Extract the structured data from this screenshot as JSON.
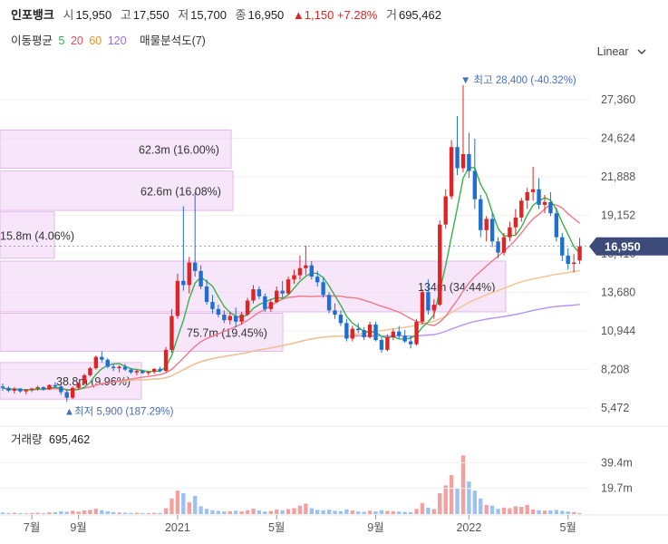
{
  "header": {
    "name": "인포뱅크",
    "open_label": "시",
    "open": "15,950",
    "high_label": "고",
    "high": "17,550",
    "low_label": "저",
    "low": "15,700",
    "close_label": "종",
    "close": "16,950",
    "change": "▲1,150 +7.28%",
    "volume_label": "거",
    "volume": "695,462"
  },
  "ma_legend": {
    "label": "이동평균",
    "p5": "5",
    "p20": "20",
    "p60": "60",
    "p120": "120",
    "extra": "매물분석도(7)"
  },
  "scale_selector": {
    "label": "Linear"
  },
  "colors": {
    "up": "#e02424",
    "down": "#1f6fd1",
    "ma5": "#35b24a",
    "ma20": "#f07888",
    "ma60": "#f3c38c",
    "ma120": "#b892f0",
    "profile": "#f2d6f6"
  },
  "chart_data": {
    "type": "candlestick",
    "x_ticks": [
      "7월",
      "9월",
      "2021",
      "5월",
      "9월",
      "2022",
      "5월"
    ],
    "y_ticks": [
      "27,360",
      "24,624",
      "21,888",
      "19,152",
      "16,416",
      "13,680",
      "10,944",
      "8,208",
      "5,472"
    ],
    "ylim": [
      5472,
      28400
    ],
    "current_price_label": "16,950",
    "high_annotation": "최고 28,400 (-40.32%)",
    "low_annotation": "최저 5,900 (187.29%)",
    "volume_profile": [
      {
        "label": "62.3m (16.00%)",
        "price_from": 22500,
        "price_to": 25200
      },
      {
        "label": "62.6m (16.08%)",
        "price_from": 19500,
        "price_to": 22300
      },
      {
        "label": "15.8m (4.06%)",
        "price_from": 16100,
        "price_to": 19400
      },
      {
        "label": "134m (34.44%)",
        "price_from": 12300,
        "price_to": 15900
      },
      {
        "label": "75.7m (19.45%)",
        "price_from": 9500,
        "price_to": 12200
      },
      {
        "label": "38.8m (9.96%)",
        "price_from": 6100,
        "price_to": 8700
      }
    ],
    "candles": [
      [
        7000,
        7200,
        6700,
        6900
      ],
      [
        6900,
        7000,
        6600,
        6700
      ],
      [
        6700,
        6950,
        6500,
        6850
      ],
      [
        6850,
        6900,
        6550,
        6650
      ],
      [
        6650,
        6800,
        6450,
        6750
      ],
      [
        6750,
        6900,
        6600,
        6850
      ],
      [
        6850,
        7050,
        6700,
        6950
      ],
      [
        6950,
        7000,
        6700,
        6800
      ],
      [
        6800,
        7150,
        6750,
        7100
      ],
      [
        7100,
        7300,
        6900,
        7000
      ],
      [
        7000,
        7100,
        6400,
        6600
      ],
      [
        6600,
        6800,
        5900,
        6200
      ],
      [
        6200,
        7000,
        6100,
        6900
      ],
      [
        6900,
        7300,
        6800,
        7200
      ],
      [
        7200,
        7900,
        7100,
        7800
      ],
      [
        7800,
        8400,
        7700,
        8300
      ],
      [
        8300,
        9200,
        8200,
        9100
      ],
      [
        9100,
        9500,
        8700,
        8900
      ],
      [
        8900,
        9000,
        8300,
        8400
      ],
      [
        8400,
        8600,
        8100,
        8300
      ],
      [
        8300,
        8500,
        8000,
        8400
      ],
      [
        8400,
        8600,
        8100,
        8200
      ],
      [
        8200,
        8300,
        7900,
        8000
      ],
      [
        8000,
        8200,
        7800,
        8100
      ],
      [
        8100,
        8200,
        7900,
        7950
      ],
      [
        7950,
        8100,
        7800,
        8050
      ],
      [
        8050,
        8300,
        7900,
        8250
      ],
      [
        8250,
        8400,
        8000,
        8100
      ],
      [
        8100,
        9800,
        8000,
        9600
      ],
      [
        9600,
        12500,
        9400,
        12000
      ],
      [
        12000,
        15000,
        11800,
        14500
      ],
      [
        14500,
        19800,
        13800,
        14200
      ],
      [
        14200,
        16200,
        13600,
        15800
      ],
      [
        15800,
        20800,
        14800,
        15200
      ],
      [
        15200,
        15600,
        13900,
        14100
      ],
      [
        14100,
        14600,
        12800,
        13000
      ],
      [
        13000,
        13500,
        12200,
        12500
      ],
      [
        12500,
        12800,
        11900,
        12100
      ],
      [
        12100,
        12400,
        11500,
        11700
      ],
      [
        11700,
        12300,
        11400,
        12000
      ],
      [
        12000,
        12600,
        11200,
        11600
      ],
      [
        11600,
        12300,
        11400,
        12100
      ],
      [
        12100,
        13300,
        12000,
        13100
      ],
      [
        13100,
        14200,
        12900,
        13900
      ],
      [
        13900,
        14100,
        13200,
        13400
      ],
      [
        13400,
        13600,
        12300,
        12500
      ],
      [
        12500,
        13200,
        12300,
        13000
      ],
      [
        13000,
        14100,
        12900,
        13800
      ],
      [
        13800,
        14500,
        13300,
        13600
      ],
      [
        13600,
        14800,
        13500,
        14600
      ],
      [
        14600,
        15300,
        14300,
        14900
      ],
      [
        14900,
        16300,
        14600,
        15400
      ],
      [
        15400,
        17000,
        14900,
        15600
      ],
      [
        15600,
        15900,
        14600,
        14800
      ],
      [
        14800,
        15200,
        14100,
        14400
      ],
      [
        14400,
        14700,
        13300,
        13500
      ],
      [
        13500,
        13700,
        12200,
        12400
      ],
      [
        12400,
        12900,
        11800,
        12100
      ],
      [
        12100,
        12400,
        11300,
        11500
      ],
      [
        11500,
        11800,
        10200,
        10400
      ],
      [
        10400,
        11300,
        10200,
        11100
      ],
      [
        11100,
        11500,
        10800,
        11000
      ],
      [
        11000,
        11200,
        10300,
        10500
      ],
      [
        10500,
        11600,
        10400,
        11400
      ],
      [
        11400,
        11600,
        10200,
        10300
      ],
      [
        10300,
        10500,
        9400,
        9600
      ],
      [
        9600,
        10700,
        9500,
        10500
      ],
      [
        10500,
        11100,
        10300,
        10900
      ],
      [
        10900,
        11300,
        10400,
        10600
      ],
      [
        10600,
        11000,
        10100,
        10200
      ],
      [
        10200,
        10600,
        9700,
        10000
      ],
      [
        10000,
        11800,
        9900,
        11600
      ],
      [
        11600,
        13900,
        11400,
        13700
      ],
      [
        13700,
        14600,
        12100,
        12400
      ],
      [
        12400,
        13200,
        11800,
        12800
      ],
      [
        12800,
        18800,
        12700,
        18500
      ],
      [
        18500,
        21000,
        18200,
        20500
      ],
      [
        20500,
        24500,
        20300,
        24000
      ],
      [
        24000,
        26200,
        22000,
        22500
      ],
      [
        22500,
        28400,
        22200,
        23500
      ],
      [
        23500,
        25000,
        21800,
        22300
      ],
      [
        22300,
        24600,
        19600,
        20300
      ],
      [
        20300,
        20600,
        17600,
        18100
      ],
      [
        18100,
        19100,
        17300,
        18900
      ],
      [
        18900,
        19300,
        16900,
        17300
      ],
      [
        17300,
        17600,
        16100,
        16500
      ],
      [
        16500,
        17900,
        16300,
        17600
      ],
      [
        17600,
        18700,
        17300,
        18300
      ],
      [
        18300,
        19600,
        17800,
        19000
      ],
      [
        19000,
        20400,
        18700,
        20200
      ],
      [
        20200,
        21100,
        19600,
        20800
      ],
      [
        20800,
        22600,
        20200,
        21000
      ],
      [
        21000,
        21800,
        19600,
        19900
      ],
      [
        19900,
        20600,
        19300,
        20100
      ],
      [
        20100,
        20800,
        19100,
        19300
      ],
      [
        19300,
        19700,
        17300,
        17600
      ],
      [
        17600,
        17900,
        15900,
        16300
      ],
      [
        16300,
        16800,
        15300,
        15700
      ],
      [
        15700,
        16400,
        15100,
        15800
      ],
      [
        15950,
        17550,
        15700,
        16950
      ]
    ],
    "volume_ticks": [
      "39.4m",
      "19.7m"
    ],
    "volume_max": 48,
    "volume_label": "거래량",
    "volume_value": "695,462",
    "volumes": [
      1.2,
      0.8,
      1.0,
      0.7,
      0.6,
      0.9,
      1.1,
      0.7,
      1.3,
      1.5,
      2.2,
      1.8,
      2.5,
      1.9,
      2.8,
      3.2,
      4.1,
      3.0,
      2.1,
      1.5,
      1.2,
      1.1,
      0.9,
      1.0,
      0.8,
      0.7,
      1.0,
      0.9,
      4.5,
      12.0,
      18.0,
      16.0,
      9.0,
      14.0,
      6.0,
      4.0,
      3.0,
      2.5,
      2.0,
      2.2,
      2.6,
      2.1,
      3.0,
      4.2,
      2.8,
      2.0,
      2.4,
      3.5,
      2.9,
      3.8,
      4.5,
      6.5,
      8.0,
      4.5,
      3.2,
      2.9,
      3.4,
      2.5,
      2.1,
      3.6,
      2.8,
      2.0,
      1.8,
      2.6,
      2.1,
      3.0,
      2.4,
      2.2,
      1.9,
      1.7,
      1.5,
      4.0,
      8.5,
      5.0,
      3.8,
      16.0,
      22.0,
      30.0,
      20.0,
      45.0,
      25.0,
      18.0,
      12.0,
      7.0,
      6.5,
      4.0,
      5.0,
      4.5,
      6.0,
      5.5,
      7.0,
      3.5,
      3.0,
      2.6,
      2.8,
      3.2,
      2.5,
      2.0,
      1.5,
      0.7
    ]
  }
}
